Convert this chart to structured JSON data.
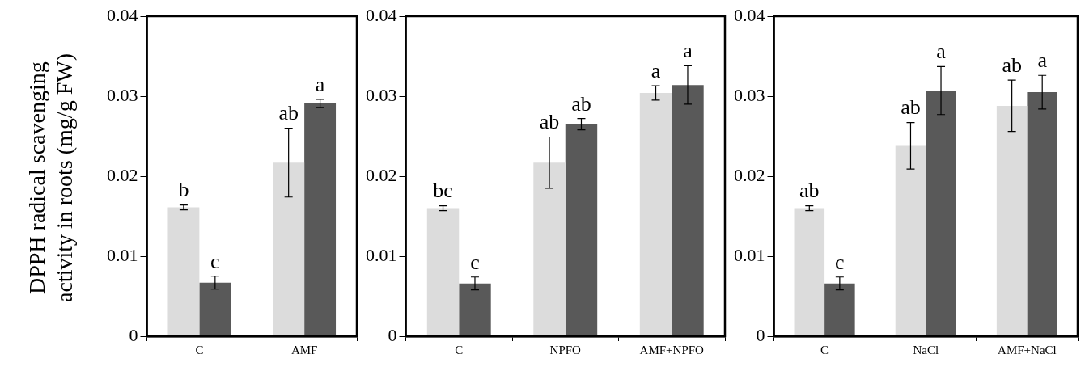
{
  "chart_data": [
    {
      "type": "bar",
      "ylabel": "DPPH radical scavenging activity in roots (mg/g FW)",
      "categories": [
        "C",
        "AMF"
      ],
      "ylim": [
        0,
        0.04
      ],
      "yticks": [
        0,
        0.01,
        0.02,
        0.03,
        0.04
      ],
      "grid": false,
      "legend": false,
      "series": [
        {
          "color": "#dcdcdc",
          "values": [
            0.0161,
            0.0217
          ],
          "errors": [
            0.0003,
            0.0043
          ],
          "value_labels": [
            "b",
            "ab"
          ]
        },
        {
          "color": "#595959",
          "values": [
            0.0067,
            0.0291
          ],
          "errors": [
            0.0008,
            0.0005
          ],
          "value_labels": [
            "c",
            "a"
          ]
        }
      ]
    },
    {
      "type": "bar",
      "categories": [
        "C",
        "NPFO",
        "AMF+NPFO"
      ],
      "ylim": [
        0,
        0.04
      ],
      "yticks": [
        0,
        0.01,
        0.02,
        0.03,
        0.04
      ],
      "grid": false,
      "legend": false,
      "series": [
        {
          "color": "#dcdcdc",
          "values": [
            0.016,
            0.0217,
            0.0304
          ],
          "errors": [
            0.0003,
            0.0032,
            0.0009
          ],
          "value_labels": [
            "bc",
            "ab",
            "a"
          ]
        },
        {
          "color": "#595959",
          "values": [
            0.0066,
            0.0265,
            0.0314
          ],
          "errors": [
            0.0008,
            0.0007,
            0.0024
          ],
          "value_labels": [
            "c",
            "ab",
            "a"
          ]
        }
      ]
    },
    {
      "type": "bar",
      "categories": [
        "C",
        "NaCl",
        "AMF+NaCl"
      ],
      "ylim": [
        0,
        0.04
      ],
      "yticks": [
        0,
        0.01,
        0.02,
        0.03,
        0.04
      ],
      "grid": false,
      "legend": false,
      "series": [
        {
          "color": "#dcdcdc",
          "values": [
            0.016,
            0.0238,
            0.0288
          ],
          "errors": [
            0.0003,
            0.0029,
            0.0032
          ],
          "value_labels": [
            "ab",
            "ab",
            "ab"
          ]
        },
        {
          "color": "#595959",
          "values": [
            0.0066,
            0.0307,
            0.0305
          ],
          "errors": [
            0.0008,
            0.003,
            0.0021
          ],
          "value_labels": [
            "c",
            "a",
            "a"
          ]
        }
      ]
    }
  ]
}
